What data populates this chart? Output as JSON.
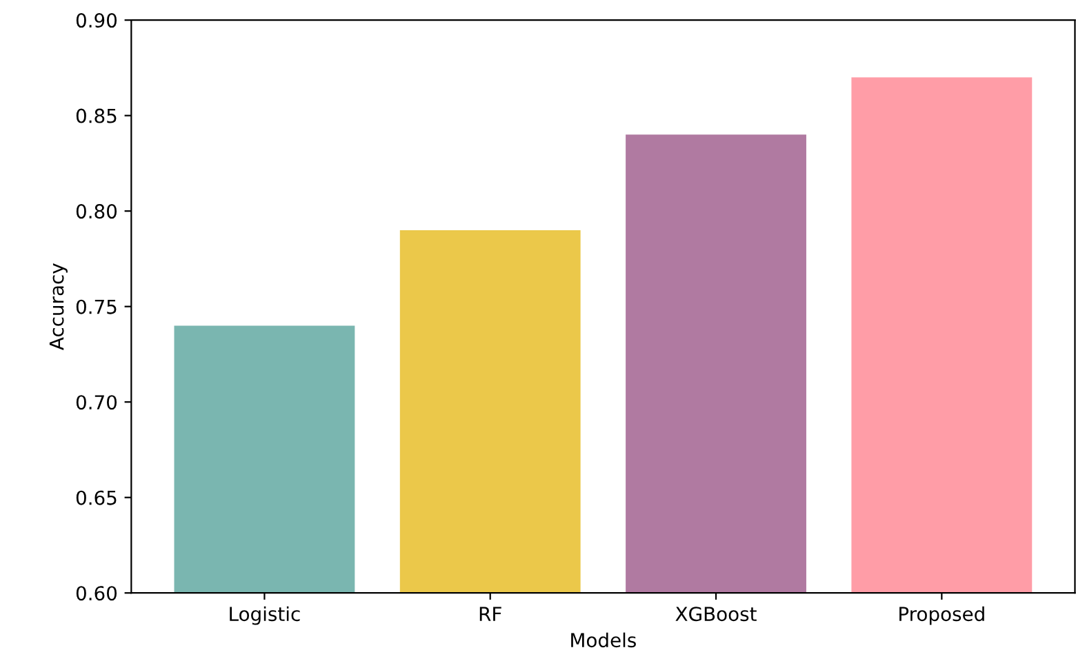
{
  "chart_data": {
    "type": "bar",
    "xlabel": "Models",
    "ylabel": "Accuracy",
    "categories": [
      "Logistic",
      "RF",
      "XGBoost",
      "Proposed"
    ],
    "values": [
      0.74,
      0.79,
      0.84,
      0.87
    ],
    "colors": [
      "#7ab6b0",
      "#ebc84a",
      "#b07aa1",
      "#ff9da7"
    ],
    "ylim": [
      0.6,
      0.9
    ],
    "yticks": [
      {
        "value": 0.6,
        "label": "0.60"
      },
      {
        "value": 0.65,
        "label": "0.65"
      },
      {
        "value": 0.7,
        "label": "0.70"
      },
      {
        "value": 0.75,
        "label": "0.75"
      },
      {
        "value": 0.8,
        "label": "0.80"
      },
      {
        "value": 0.85,
        "label": "0.85"
      },
      {
        "value": 0.9,
        "label": "0.90"
      }
    ]
  }
}
